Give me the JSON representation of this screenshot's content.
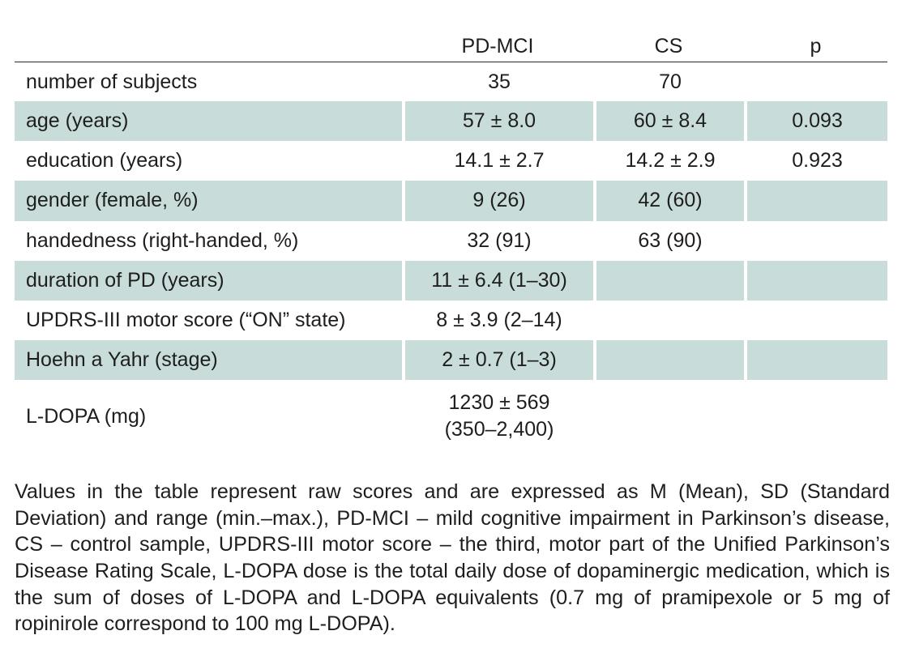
{
  "table": {
    "headers": [
      "",
      "PD-MCI",
      "CS",
      "p"
    ],
    "rows": [
      {
        "label": "number of subjects",
        "pdmci": "35",
        "cs": "70",
        "p": "",
        "shaded": false
      },
      {
        "label": "age (years)",
        "pdmci": "57 ± 8.0",
        "cs": "60 ± 8.4",
        "p": "0.093",
        "shaded": true
      },
      {
        "label": "education (years)",
        "pdmci": "14.1 ± 2.7",
        "cs": "14.2 ± 2.9",
        "p": "0.923",
        "shaded": false
      },
      {
        "label": "gender (female, %)",
        "pdmci": "9 (26)",
        "cs": "42 (60)",
        "p": "",
        "shaded": true
      },
      {
        "label": "handedness (right-handed, %)",
        "pdmci": "32 (91)",
        "cs": "63 (90)",
        "p": "",
        "shaded": false
      },
      {
        "label": "duration of PD (years)",
        "pdmci": "11 ± 6.4 (1–30)",
        "cs": "",
        "p": "",
        "shaded": true
      },
      {
        "label": "UPDRS-III motor score (“ON” state)",
        "pdmci": "8 ± 3.9 (2–14)",
        "cs": "",
        "p": "",
        "shaded": false
      },
      {
        "label": "Hoehn a Yahr (stage)",
        "pdmci": "2 ± 0.7 (1–3)",
        "cs": "",
        "p": "",
        "shaded": true
      },
      {
        "label": "L-DOPA (mg)",
        "pdmci_line1": "1230 ± 569",
        "pdmci_line2": "(350–2,400)",
        "cs": "",
        "p": "",
        "shaded": false
      }
    ]
  },
  "note": "Values in the table represent raw scores and are expressed as M (Mean), SD (Standard Deviation) and range (min.–max.), PD-MCI – mild cognitive impairment in Parkinson’s disease, CS – control sample, UPDRS-III motor score – the third, motor part of the Unified Parkinson’s Disease Rating Scale, L-DOPA dose is the total daily dose of dopaminergic medication, which is the sum of doses of L-DOPA and L-DOPA equivalents (0.7 mg of pramipexole or 5 mg of ropinirole correspond to 100 mg L-DOPA).",
  "colors": {
    "row_shade": "#c8ddd9",
    "rule": "#2a2a2a",
    "text": "#1e1e1e"
  }
}
